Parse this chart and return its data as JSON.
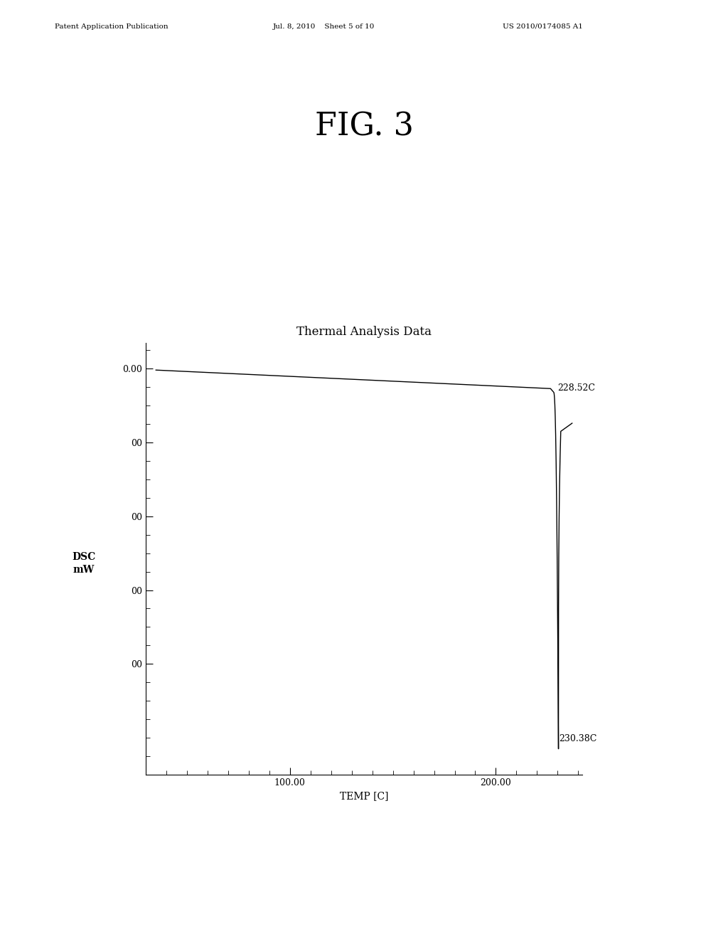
{
  "fig_title": "FIG. 3",
  "chart_title": "Thermal Analysis Data",
  "xlabel": "TEMP [C]",
  "ylabel_line1": "DSC",
  "ylabel_line2": "mW",
  "header_left": "Patent Application Publication",
  "header_mid": "Jul. 8, 2010    Sheet 5 of 10",
  "header_right": "US 2010/0174085 A1",
  "xlim": [
    30,
    242
  ],
  "ylim": [
    -5.5,
    0.35
  ],
  "annotation_onset_label": "228.52C",
  "annotation_min_label": "230.38C",
  "line_color": "#000000",
  "background_color": "#ffffff",
  "fig_title_fontsize": 32,
  "chart_title_fontsize": 12,
  "axis_label_fontsize": 10,
  "tick_label_fontsize": 9,
  "annotation_fontsize": 9,
  "header_fontsize": 7.5
}
